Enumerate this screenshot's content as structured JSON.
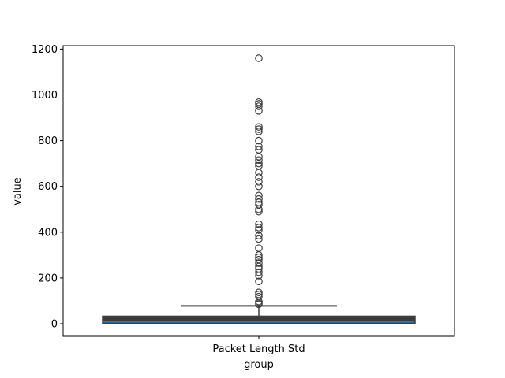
{
  "chart_data": {
    "type": "box",
    "title": "",
    "xlabel": "group",
    "ylabel": "value",
    "categories": [
      "Packet Length Std"
    ],
    "ylim": [
      -55,
      1215
    ],
    "yticks": [
      0,
      200,
      400,
      600,
      800,
      1000,
      1200
    ],
    "grid": false,
    "box": {
      "category": "Packet Length Std",
      "whisker_low": 0,
      "q1": 0,
      "median": 9,
      "q3": 33,
      "whisker_high": 78,
      "outliers": [
        85,
        90,
        97,
        118,
        128,
        137,
        185,
        210,
        225,
        240,
        250,
        265,
        280,
        290,
        300,
        330,
        370,
        385,
        410,
        420,
        435,
        490,
        500,
        520,
        530,
        545,
        560,
        600,
        620,
        640,
        660,
        690,
        700,
        715,
        730,
        760,
        775,
        800,
        840,
        850,
        860,
        930,
        950,
        960,
        968,
        1160
      ]
    },
    "colors": {
      "box_fill": "#3a3a3a",
      "median_line": "#2b7bba",
      "whisker": "#3f3f3f",
      "outlier_edge": "#3f3f3f"
    }
  }
}
